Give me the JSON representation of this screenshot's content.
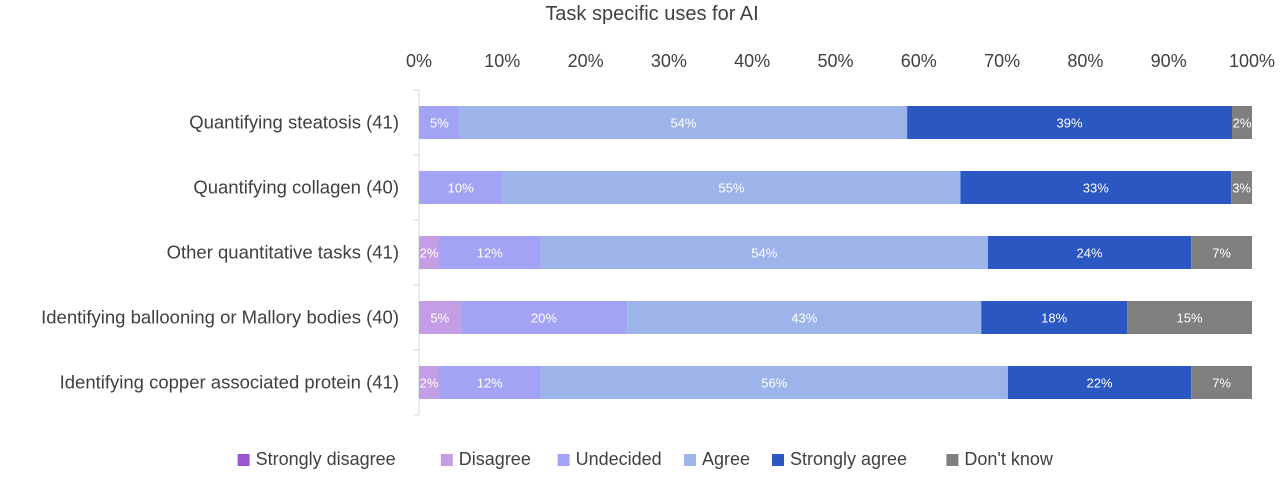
{
  "chart_data": {
    "type": "bar",
    "orientation": "horizontal",
    "stacked": "percent",
    "title": "Task specific uses for AI",
    "x_axis_position": "top",
    "xlim": [
      0,
      100
    ],
    "x_ticks": [
      "0%",
      "10%",
      "20%",
      "30%",
      "40%",
      "50%",
      "60%",
      "70%",
      "80%",
      "90%",
      "100%"
    ],
    "grid": false,
    "legend": "bottom",
    "categories": [
      "Quantifying steatosis (41)",
      "Quantifying collagen (40)",
      "Other quantitative tasks (41)",
      "Identifying ballooning or Mallory bodies (40)",
      "Identifying copper associated protein (41)"
    ],
    "series": [
      {
        "name": "Strongly disagree",
        "color": "#9b57d3",
        "values": [
          0,
          0,
          0,
          0,
          0
        ],
        "labels": [
          "",
          "",
          "",
          "",
          ""
        ]
      },
      {
        "name": "Disagree",
        "color": "#c49ee5",
        "values": [
          0,
          0,
          2.4,
          5,
          2.4
        ],
        "labels": [
          "",
          "",
          "2%",
          "5%",
          "2%"
        ]
      },
      {
        "name": "Undecided",
        "color": "#a3a3f5",
        "values": [
          4.9,
          10,
          12.2,
          20,
          12.2
        ],
        "labels": [
          "5%",
          "10%",
          "12%",
          "20%",
          "12%"
        ]
      },
      {
        "name": "Agree",
        "color": "#9db4ea",
        "values": [
          53.7,
          55,
          53.7,
          42.5,
          56.1
        ],
        "labels": [
          "54%",
          "55%",
          "54%",
          "43%",
          "56%"
        ]
      },
      {
        "name": "Strongly agree",
        "color": "#2b57c2",
        "values": [
          39,
          32.5,
          24.4,
          17.5,
          22
        ],
        "labels": [
          "39%",
          "33%",
          "24%",
          "18%",
          "22%"
        ]
      },
      {
        "name": "Don't know",
        "color": "#7f7f7f",
        "values": [
          2.4,
          2.5,
          7.3,
          15,
          7.3
        ],
        "labels": [
          "2%",
          "3%",
          "7%",
          "15%",
          "7%"
        ]
      }
    ]
  }
}
